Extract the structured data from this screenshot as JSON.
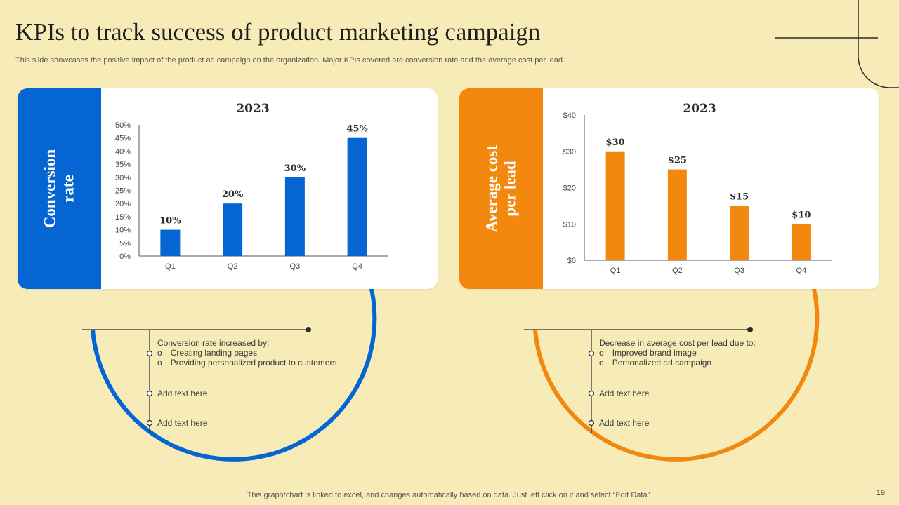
{
  "slide": {
    "title": "KPIs to track success of product marketing campaign",
    "subtitle": "This slide showcases the positive impact of the product ad campaign on the organization. Major KPIs covered are conversion rate and the average cost per lead.",
    "footer": "This graph/chart is linked to excel,  and changes automatically based on data. Just left click on it and select “Edit Data”.",
    "page_number": "19"
  },
  "colors": {
    "background": "#f7ebb8",
    "blue": "#0565d2",
    "orange": "#f3880e"
  },
  "left_card": {
    "label_line1": "Conversion",
    "label_line2": "rate",
    "notes": {
      "heading": "Conversion rate increased by:",
      "bullets": [
        "Creating landing pages",
        "Providing personalized product to customers"
      ],
      "item2": "Add text here",
      "item3": "Add text here"
    }
  },
  "right_card": {
    "label_line1": "Average cost",
    "label_line2": "per lead",
    "notes": {
      "heading": "Decrease in average cost per lead due to:",
      "bullets": [
        "Improved brand image",
        "Personalized ad campaign"
      ],
      "item2": "Add text here",
      "item3": "Add text here"
    }
  },
  "bullet_marker": "o",
  "chart_data": [
    {
      "type": "bar",
      "title": "2023",
      "categories": [
        "Q1",
        "Q2",
        "Q3",
        "Q4"
      ],
      "values": [
        10,
        20,
        30,
        45
      ],
      "data_labels": [
        "10%",
        "20%",
        "30%",
        "45%"
      ],
      "yticks": [
        "0%",
        "5%",
        "10%",
        "15%",
        "20%",
        "25%",
        "30%",
        "35%",
        "40%",
        "45%",
        "50%"
      ],
      "ylim": [
        0,
        50
      ],
      "xlabel": "",
      "ylabel": "",
      "color": "#0565d2"
    },
    {
      "type": "bar",
      "title": "2023",
      "categories": [
        "Q1",
        "Q2",
        "Q3",
        "Q4"
      ],
      "values": [
        30,
        25,
        15,
        10
      ],
      "data_labels": [
        "$30",
        "$25",
        "$15",
        "$10"
      ],
      "yticks": [
        "$0",
        "$10",
        "$20",
        "$30",
        "$40"
      ],
      "ylim": [
        0,
        40
      ],
      "xlabel": "",
      "ylabel": "",
      "color": "#f3880e"
    }
  ]
}
